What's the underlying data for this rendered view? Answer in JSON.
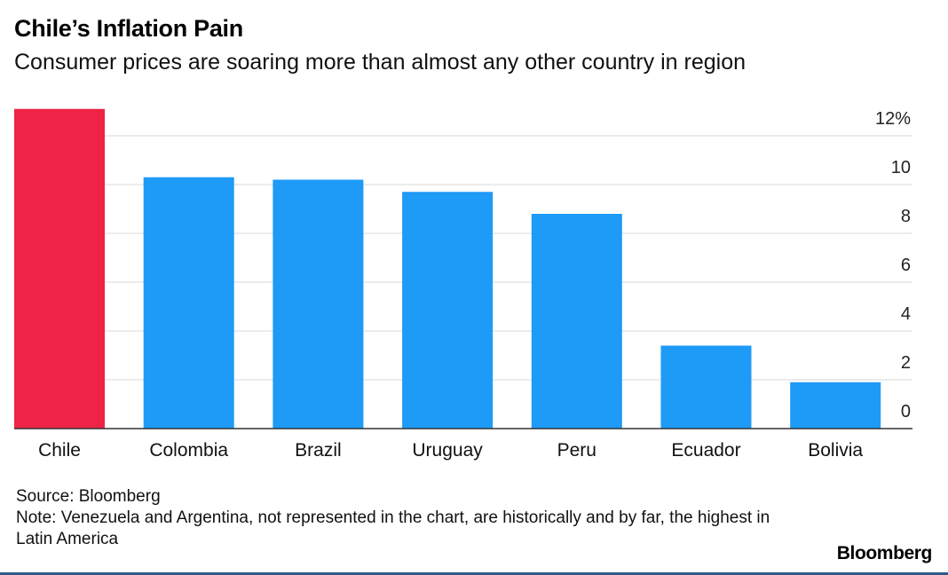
{
  "chart_data": {
    "type": "bar",
    "title": "Chile’s Inflation Pain",
    "subtitle": "Consumer prices are soaring more than almost any other country in region",
    "categories": [
      "Chile",
      "Colombia",
      "Brazil",
      "Uruguay",
      "Peru",
      "Ecuador",
      "Bolivia"
    ],
    "values": [
      13.1,
      10.3,
      10.2,
      9.7,
      8.8,
      3.4,
      1.9
    ],
    "highlight_index": 0,
    "colors": {
      "highlight": "#ee2346",
      "bar": "#1e9af7",
      "grid": "#d9d9d9",
      "axis": "#333333"
    },
    "yaxis": {
      "ticks": [
        0,
        2,
        4,
        6,
        8,
        10,
        12
      ],
      "tick_labels": [
        "0",
        "2",
        "4",
        "6",
        "8",
        "10",
        "12%"
      ],
      "position": "right"
    },
    "ylim": [
      0,
      13.3
    ],
    "grid": true,
    "xlabel": "",
    "ylabel": ""
  },
  "footer": {
    "source": "Source: Bloomberg",
    "note": "Note: Venezuela and Argentina, not represented in the chart, are historically and by far, the highest in Latin America"
  },
  "brand": "Bloomberg"
}
